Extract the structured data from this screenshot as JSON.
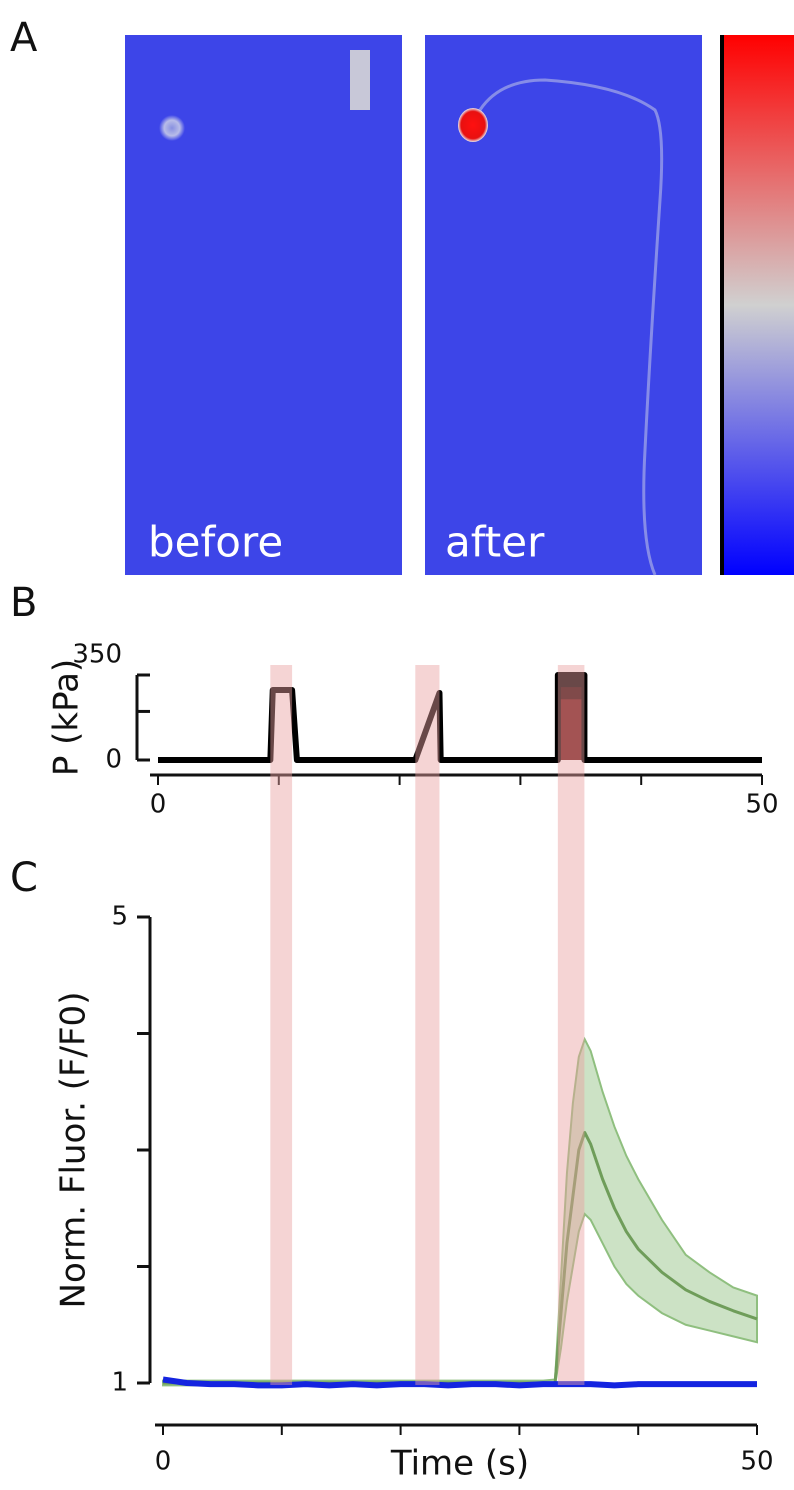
{
  "panel_a": {
    "label": "A",
    "images": [
      {
        "caption": "before"
      },
      {
        "caption": "after"
      }
    ]
  },
  "chart_data": [
    {
      "type": "line",
      "panel_label": "B",
      "ylabel": "P (kPa)",
      "xlim": [
        0,
        50
      ],
      "ylim": [
        0,
        350
      ],
      "xticks": [
        0,
        50
      ],
      "x_minor_ticks": [
        10,
        20,
        30,
        40
      ],
      "yticks": [
        0,
        350
      ],
      "y_minor_ticks": [
        200
      ],
      "stimulus_windows": [
        [
          9.3,
          11.1
        ],
        [
          21.3,
          23.3
        ],
        [
          33.1,
          35.3
        ]
      ],
      "series": [
        {
          "color": "#000000",
          "fill": true,
          "x": [
            33.1,
            33.1,
            35.3,
            35.3
          ],
          "values": [
            0,
            350,
            350,
            0
          ]
        },
        {
          "color": "#2a0505",
          "fill": true,
          "x": [
            33.1,
            33.1,
            35.3,
            35.3
          ],
          "values": [
            0,
            300,
            300,
            0
          ]
        },
        {
          "color": "#6a1515",
          "fill": true,
          "x": [
            33.1,
            33.1,
            35.3,
            35.3
          ],
          "values": [
            0,
            250,
            250,
            0
          ]
        },
        {
          "color": "#000000",
          "x": [
            0,
            9.3,
            9.5,
            11.1,
            11.5,
            21.3,
            23.3,
            23.4,
            33.1,
            33.1,
            35.3,
            35.3,
            50
          ],
          "values": [
            0,
            0,
            288,
            288,
            0,
            0,
            276,
            0,
            0,
            350,
            350,
            0,
            0
          ]
        }
      ]
    },
    {
      "type": "line",
      "panel_label": "C",
      "ylabel": "Norm. Fluor. (F/F0)",
      "xlabel": "Time (s)",
      "xlim": [
        0,
        50
      ],
      "ylim": [
        1,
        5
      ],
      "xticks": [
        0,
        50
      ],
      "x_minor_ticks": [
        10,
        20,
        30,
        40
      ],
      "yticks": [
        1,
        5
      ],
      "y_minor_ticks": [
        2,
        3,
        4
      ],
      "series": [
        {
          "color": "#6f9d5a",
          "band_color": "#8fbf7f",
          "x": [
            0,
            5,
            10,
            15,
            20,
            25,
            30,
            32,
            33,
            33.5,
            34,
            34.5,
            35,
            35.5,
            36,
            37,
            38,
            39,
            40,
            42,
            44,
            46,
            48,
            50
          ],
          "values": [
            1,
            1,
            1,
            1,
            1,
            1,
            1,
            1,
            1,
            1.6,
            2.2,
            2.6,
            3.0,
            3.15,
            3.05,
            2.75,
            2.5,
            2.3,
            2.15,
            1.95,
            1.8,
            1.7,
            1.62,
            1.55
          ],
          "upper": [
            1.02,
            1.02,
            1.02,
            1.02,
            1.02,
            1.02,
            1.02,
            1.02,
            1.03,
            1.9,
            2.8,
            3.4,
            3.8,
            3.95,
            3.85,
            3.5,
            3.2,
            2.95,
            2.75,
            2.4,
            2.1,
            1.95,
            1.82,
            1.75
          ],
          "lower": [
            0.98,
            0.98,
            0.98,
            0.98,
            0.98,
            0.98,
            0.98,
            0.98,
            0.98,
            1.3,
            1.7,
            2.0,
            2.3,
            2.45,
            2.4,
            2.2,
            2.0,
            1.85,
            1.75,
            1.6,
            1.5,
            1.45,
            1.4,
            1.35
          ]
        },
        {
          "color": "#1424e0",
          "x": [
            0,
            2,
            4,
            6,
            8,
            10,
            12,
            14,
            16,
            18,
            20,
            22,
            24,
            26,
            28,
            30,
            32,
            34,
            36,
            38,
            40,
            42,
            44,
            46,
            48,
            50
          ],
          "values": [
            1.03,
            1.0,
            0.99,
            0.99,
            0.98,
            0.98,
            0.99,
            0.98,
            0.99,
            0.98,
            0.99,
            0.99,
            0.98,
            0.99,
            0.99,
            0.98,
            0.99,
            0.99,
            0.99,
            0.98,
            0.99,
            0.99,
            0.99,
            0.99,
            0.99,
            0.99
          ]
        }
      ]
    }
  ]
}
